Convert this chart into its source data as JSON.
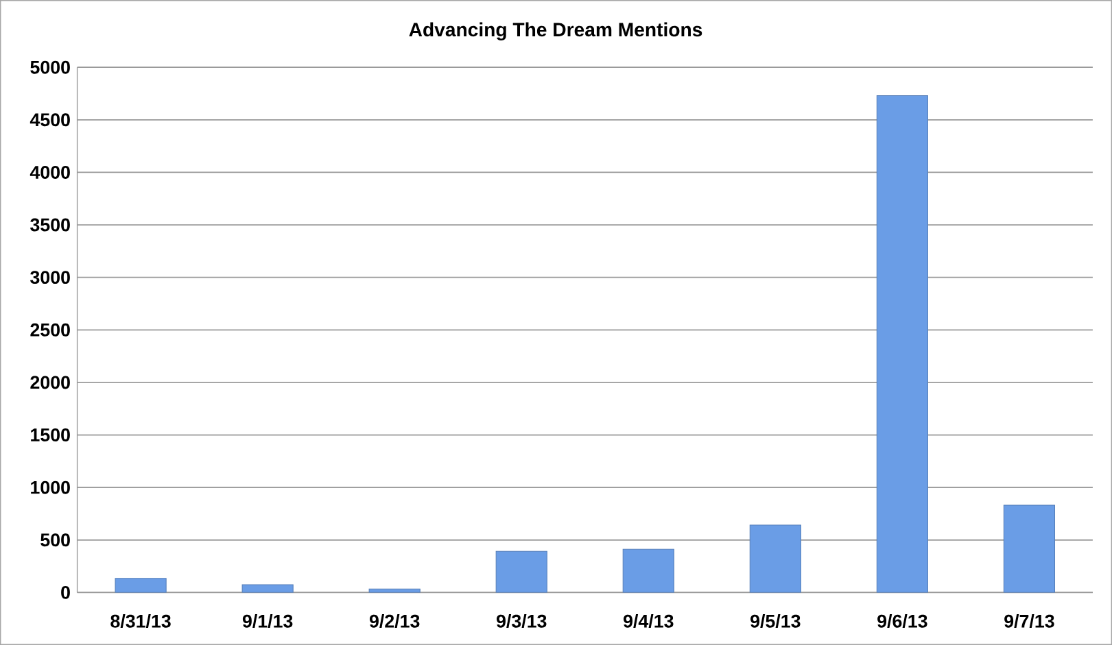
{
  "chart_data": {
    "type": "bar",
    "title": "Advancing The Dream Mentions",
    "categories": [
      "8/31/13",
      "9/1/13",
      "9/2/13",
      "9/3/13",
      "9/4/13",
      "9/5/13",
      "9/6/13",
      "9/7/13"
    ],
    "values": [
      135,
      74,
      34,
      392,
      412,
      642,
      4730,
      831
    ],
    "color": "#6a9de6",
    "ylim": [
      0,
      5000
    ],
    "yticks": [
      0,
      500,
      1000,
      1500,
      2000,
      2500,
      3000,
      3500,
      4000,
      4500,
      5000
    ],
    "grid": "y"
  }
}
